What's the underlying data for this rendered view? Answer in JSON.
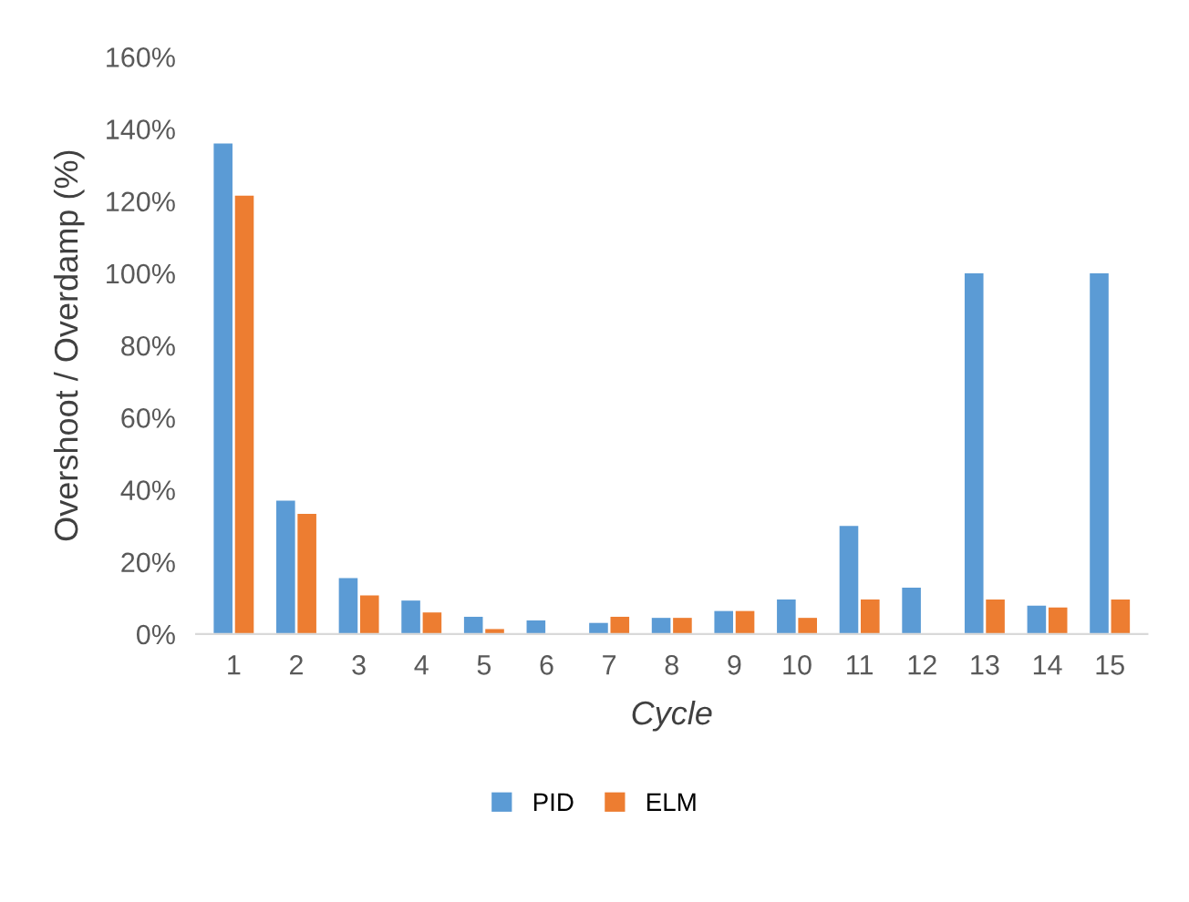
{
  "chart_data": {
    "type": "bar",
    "xlabel": "Cycle",
    "ylabel": "Overshoot / Overdamp (%)",
    "categories": [
      "1",
      "2",
      "3",
      "4",
      "5",
      "6",
      "7",
      "8",
      "9",
      "10",
      "11",
      "12",
      "13",
      "14",
      "15"
    ],
    "series": [
      {
        "name": "PID",
        "color": "#5b9bd5",
        "values": [
          136,
          37,
          15.5,
          9.3,
          4.8,
          3.8,
          3.1,
          4.5,
          6.4,
          9.6,
          30,
          12.9,
          100,
          7.9,
          100
        ]
      },
      {
        "name": "ELM",
        "color": "#ed7d31",
        "values": [
          121.5,
          33.3,
          10.7,
          6,
          1.4,
          0,
          4.8,
          4.5,
          6.4,
          4.5,
          9.6,
          0,
          9.6,
          7.4,
          9.6
        ]
      }
    ],
    "ylim": [
      0,
      160
    ],
    "yticks": [
      {
        "value": 0,
        "label": "0%"
      },
      {
        "value": 20,
        "label": "20%"
      },
      {
        "value": 40,
        "label": "40%"
      },
      {
        "value": 60,
        "label": "60%"
      },
      {
        "value": 80,
        "label": "80%"
      },
      {
        "value": 100,
        "label": "100%"
      },
      {
        "value": 120,
        "label": "120%"
      },
      {
        "value": 140,
        "label": "140%"
      },
      {
        "value": 160,
        "label": "160%"
      }
    ],
    "grid": false,
    "legend": "bottom"
  }
}
